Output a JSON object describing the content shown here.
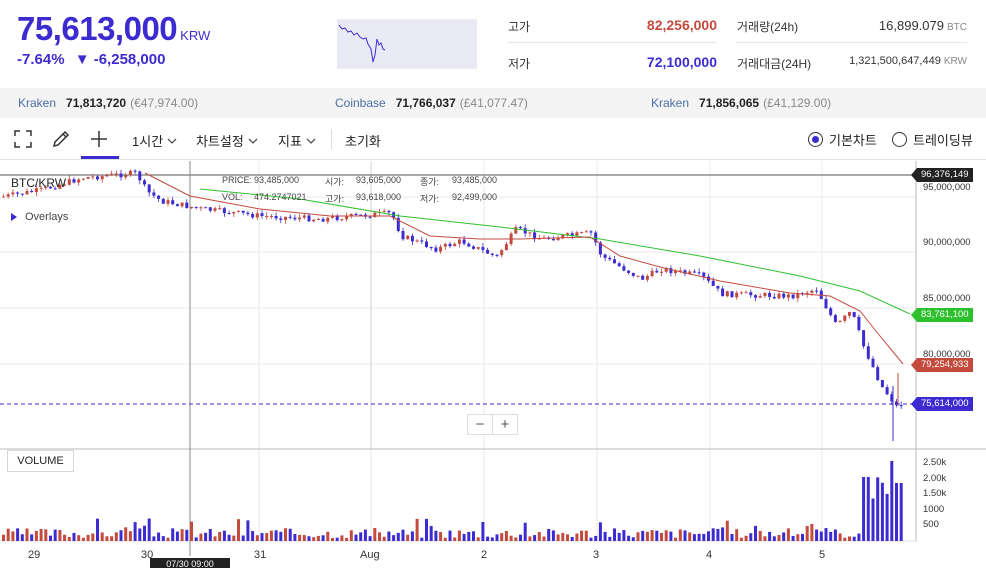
{
  "header": {
    "price": "75,613,000",
    "unit": "KRW",
    "change_pct": "-7.64%",
    "change_abs": "▼ -6,258,000",
    "high_label": "고가",
    "high_value": "82,256,000",
    "low_label": "저가",
    "low_value": "72,100,000",
    "volume_label": "거래량(24h)",
    "volume_value": "16,899.079",
    "volume_unit": "BTC",
    "amount_label": "거래대금(24H)",
    "amount_value": "1,321,500,647,449",
    "amount_unit": "KRW"
  },
  "exchanges": [
    {
      "name": "Kraken",
      "price": "71,813,720",
      "fiat": "(€47,974.00)"
    },
    {
      "name": "Coinbase",
      "price": "71,766,037",
      "fiat": "(£41,077.47)"
    },
    {
      "name": "Kraken",
      "price": "71,856,065",
      "fiat": "(£41,129.00)"
    }
  ],
  "toolbar": {
    "interval": "1시간",
    "chart_settings": "차트설정",
    "indicators": "지표",
    "reset": "초기화",
    "basic_chart": "기본차트",
    "tradingview": "트레이딩뷰"
  },
  "chart": {
    "symbol": "BTC/KRW",
    "overlays": "Overlays",
    "volume_label": "VOLUME",
    "ohlc": {
      "price_label": "PRICE:",
      "price": "93,485,000",
      "open_label": "시가:",
      "open": "93,605,000",
      "close_label": "종가:",
      "close": "93,485,000",
      "vol_label": "VOL:",
      "vol": "474.2747021",
      "high_label": "고가:",
      "high": "93,618,000",
      "low_label": "저가:",
      "low": "92,499,000"
    },
    "price_axis": [
      "95,000,000",
      "90,000,000",
      "85,000,000",
      "80,000,000"
    ],
    "volume_axis": [
      "2.50k",
      "2.00k",
      "1.50k",
      "1000",
      "500"
    ],
    "tags": {
      "top": "96,376,149",
      "ma_long": "83,761,100",
      "ma_short": "79,254,933",
      "current": "75,614,000"
    },
    "dates": [
      "29",
      "30",
      "31",
      "Aug",
      "2",
      "3",
      "4",
      "5"
    ],
    "crosshair_date": "07/30 09:00",
    "colors": {
      "up": "#c34a3d",
      "down": "#3b2bd0",
      "ma_long": "#2ec12e",
      "ma_short": "#c34a3d",
      "grid": "#e9e9e9"
    }
  }
}
